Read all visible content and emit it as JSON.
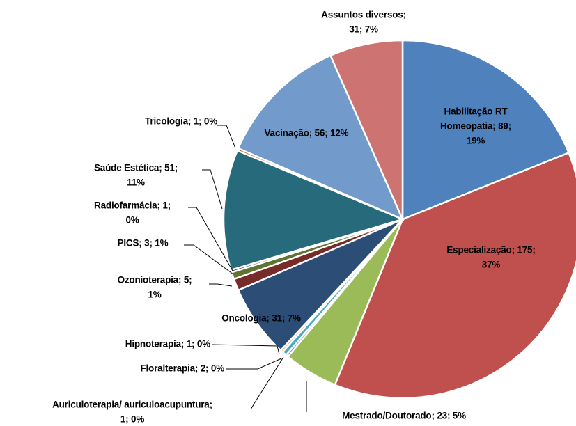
{
  "chart_data": {
    "type": "pie",
    "values": [
      89,
      175,
      23,
      1,
      2,
      1,
      31,
      5,
      3,
      1,
      51,
      1,
      56,
      31
    ],
    "value_labels": [
      [
        "Habilitação RT",
        "Homeopatia; 89;",
        "19%"
      ],
      [
        "Especialização; 175;",
        "37%"
      ],
      [
        "Mestrado/Doutorado; 23; 5%"
      ],
      [
        "Auriculoterapia/ auriculoacupuntura;",
        "1; 0%"
      ],
      [
        "Floralterapia; 2; 0%"
      ],
      [
        "Hipnoterapia; 1; 0%"
      ],
      [
        "Oncologia; 31; 7%"
      ],
      [
        "Ozonioterapia; 5;",
        "1%"
      ],
      [
        "PICS; 3; 1%"
      ],
      [
        "Radiofarmácia; 1;",
        "0%"
      ],
      [
        "Saúde Estética; 51;",
        "11%"
      ],
      [
        "Tricologia; 1; 0%"
      ],
      [
        "Vacinação; 56; 12%"
      ],
      [
        "Assuntos diversos;",
        "31; 7%"
      ]
    ],
    "colors": [
      "#4f81bd",
      "#c0504d",
      "#9bbb59",
      "#8064a2",
      "#4bacc6",
      "#f79646",
      "#2c4d75",
      "#772c2a",
      "#5f7530",
      "#4d3b62",
      "#276a7c",
      "#b65708",
      "#729aca",
      "#cd7371"
    ]
  }
}
